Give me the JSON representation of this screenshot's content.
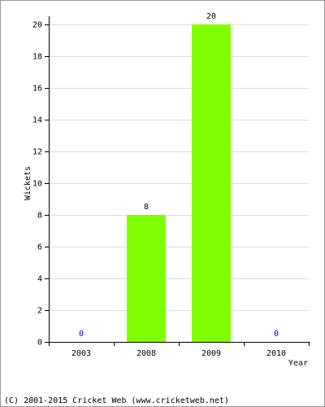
{
  "chart_data": {
    "type": "bar",
    "categories": [
      "2003",
      "2008",
      "2009",
      "2010"
    ],
    "values": [
      0,
      8,
      20,
      0
    ],
    "color": "#80ff00",
    "zero_label_color": "#0000cc",
    "ylim": [
      0,
      20
    ],
    "yticks": [
      0,
      2,
      4,
      6,
      8,
      10,
      12,
      14,
      16,
      18,
      20
    ],
    "grid": true,
    "y_label": "Wickets",
    "x_label": "Year",
    "footer": "(C) 2001-2015 Cricket Web (www.cricketweb.net)"
  }
}
